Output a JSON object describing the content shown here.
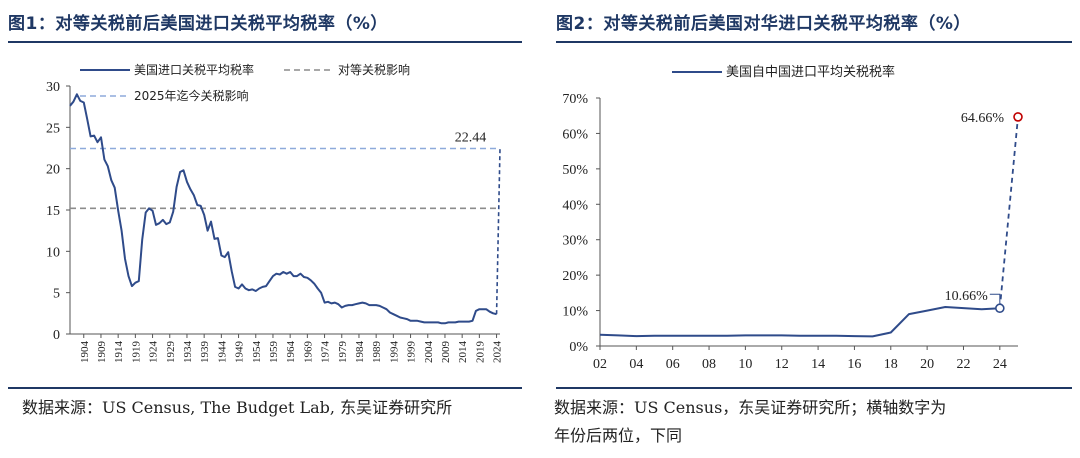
{
  "panel1": {
    "title": "图1：对等关税前后美国进口关税平均税率（%）",
    "source": "数据来源：US Census, The Budget Lab, 东吴证券研究所"
  },
  "panel2": {
    "title": "图2：对等关税前后美国对华进口关税平均税率（%）",
    "source_line1": "数据来源：US Census，东吴证券研究所；横轴数字为",
    "source_line2": "年份后两位，下同"
  },
  "colors": {
    "title": "#1f3864",
    "series": "#2f4b8a",
    "ref_gray": "#8c8c8c",
    "ref_blue": "#8eaadb",
    "end_marker": "#c00000"
  },
  "chart_data": [
    {
      "type": "line",
      "title": "对等关税前后美国进口关税平均税率（%）",
      "xlabel": "",
      "ylabel": "",
      "ylim": [
        0,
        30
      ],
      "yticks": [
        0,
        5,
        10,
        15,
        20,
        25,
        30
      ],
      "xticks": [
        "1904",
        "1909",
        "1914",
        "1919",
        "1924",
        "1929",
        "1934",
        "1939",
        "1944",
        "1949",
        "1954",
        "1959",
        "1964",
        "1969",
        "1974",
        "1979",
        "1984",
        "1989",
        "1994",
        "1999",
        "2004",
        "2009",
        "2014",
        "2019",
        "2024"
      ],
      "xlim": [
        1900,
        2025
      ],
      "series": [
        {
          "name": "美国进口关税平均税率",
          "x": [
            1900,
            1901,
            1902,
            1903,
            1904,
            1905,
            1906,
            1907,
            1908,
            1909,
            1910,
            1911,
            1912,
            1913,
            1914,
            1915,
            1916,
            1917,
            1918,
            1919,
            1920,
            1921,
            1922,
            1923,
            1924,
            1925,
            1926,
            1927,
            1928,
            1929,
            1930,
            1931,
            1932,
            1933,
            1934,
            1935,
            1936,
            1937,
            1938,
            1939,
            1940,
            1941,
            1942,
            1943,
            1944,
            1945,
            1946,
            1947,
            1948,
            1949,
            1950,
            1951,
            1952,
            1953,
            1954,
            1955,
            1956,
            1957,
            1958,
            1959,
            1960,
            1961,
            1962,
            1963,
            1964,
            1965,
            1966,
            1967,
            1968,
            1969,
            1970,
            1971,
            1972,
            1973,
            1974,
            1975,
            1976,
            1977,
            1978,
            1979,
            1980,
            1981,
            1982,
            1983,
            1984,
            1985,
            1986,
            1987,
            1988,
            1989,
            1990,
            1991,
            1992,
            1993,
            1994,
            1995,
            1996,
            1997,
            1998,
            1999,
            2000,
            2001,
            2002,
            2003,
            2004,
            2005,
            2006,
            2007,
            2008,
            2009,
            2010,
            2011,
            2012,
            2013,
            2014,
            2015,
            2016,
            2017,
            2018,
            2019,
            2020,
            2021,
            2022,
            2023,
            2024
          ],
          "values": [
            27.6,
            28.1,
            29.0,
            28.2,
            28.0,
            26.0,
            23.9,
            24.0,
            23.2,
            23.8,
            21.1,
            20.3,
            18.6,
            17.7,
            14.9,
            12.5,
            9.1,
            7.0,
            5.8,
            6.2,
            6.4,
            11.4,
            14.7,
            15.2,
            14.9,
            13.2,
            13.4,
            13.8,
            13.3,
            13.5,
            14.8,
            17.8,
            19.6,
            19.8,
            18.4,
            17.5,
            16.8,
            15.6,
            15.5,
            14.4,
            12.5,
            13.6,
            11.5,
            11.6,
            9.5,
            9.3,
            9.9,
            7.6,
            5.7,
            5.5,
            6.0,
            5.5,
            5.3,
            5.4,
            5.2,
            5.5,
            5.7,
            5.8,
            6.4,
            7.0,
            7.3,
            7.2,
            7.5,
            7.3,
            7.5,
            7.0,
            7.0,
            7.3,
            6.9,
            6.8,
            6.5,
            6.1,
            5.5,
            5.0,
            3.8,
            3.9,
            3.7,
            3.8,
            3.6,
            3.2,
            3.4,
            3.5,
            3.5,
            3.6,
            3.7,
            3.8,
            3.7,
            3.5,
            3.5,
            3.5,
            3.4,
            3.2,
            3.0,
            2.6,
            2.4,
            2.2,
            2.0,
            1.9,
            1.8,
            1.6,
            1.6,
            1.6,
            1.5,
            1.4,
            1.4,
            1.4,
            1.4,
            1.4,
            1.3,
            1.3,
            1.4,
            1.4,
            1.4,
            1.5,
            1.5,
            1.5,
            1.5,
            1.6,
            2.8,
            3.0,
            3.0,
            3.0,
            2.7,
            2.5,
            2.4
          ]
        },
        {
          "name": "对等关税影响",
          "x": [
            1900,
            2024
          ],
          "values": [
            15.2,
            15.2
          ],
          "style": "dashed-gray"
        },
        {
          "name": "2025年迄今关税影响",
          "x": [
            1900,
            2025
          ],
          "values": [
            22.44,
            22.44
          ],
          "style": "dashed-blue"
        }
      ],
      "annotations": [
        {
          "text": "22.44",
          "x": 2021,
          "y": 22.44
        }
      ],
      "legend": [
        "美国进口关税平均税率",
        "对等关税影响",
        "2025年迄今关税影响"
      ],
      "legend_position": "top-left"
    },
    {
      "type": "line",
      "title": "对等关税前后美国对华进口关税平均税率（%）",
      "xlabel": "横轴数字为年份后两位",
      "ylabel": "",
      "ylim": [
        0,
        70
      ],
      "yticks": [
        "0%",
        "10%",
        "20%",
        "30%",
        "40%",
        "50%",
        "60%",
        "70%"
      ],
      "yticks_values": [
        0,
        10,
        20,
        30,
        40,
        50,
        60,
        70
      ],
      "xlim": [
        2,
        25
      ],
      "xticks": [
        "02",
        "04",
        "06",
        "08",
        "10",
        "12",
        "14",
        "16",
        "18",
        "20",
        "22",
        "24"
      ],
      "xticks_values": [
        2,
        4,
        6,
        8,
        10,
        12,
        14,
        16,
        18,
        20,
        22,
        24
      ],
      "series": [
        {
          "name": "美国自中国进口平均关税税率",
          "x": [
            2,
            3,
            4,
            5,
            6,
            7,
            8,
            9,
            10,
            11,
            12,
            13,
            14,
            15,
            16,
            17,
            18,
            19,
            20,
            21,
            22,
            23,
            24
          ],
          "values": [
            3.2,
            3.0,
            2.8,
            2.9,
            2.9,
            2.9,
            2.9,
            2.9,
            3.0,
            3.0,
            3.0,
            2.9,
            2.9,
            2.9,
            2.8,
            2.7,
            3.8,
            9.0,
            10.0,
            11.0,
            10.7,
            10.4,
            10.66
          ]
        },
        {
          "name": "对等关税后",
          "x": [
            24,
            25
          ],
          "values": [
            10.66,
            64.66
          ],
          "style": "dashed"
        }
      ],
      "annotations": [
        {
          "text": "10.66%",
          "x": 24,
          "y": 10.66
        },
        {
          "text": "64.66%",
          "x": 25,
          "y": 64.66
        }
      ],
      "legend": [
        "美国自中国进口平均关税税率"
      ],
      "legend_position": "top-center"
    }
  ]
}
